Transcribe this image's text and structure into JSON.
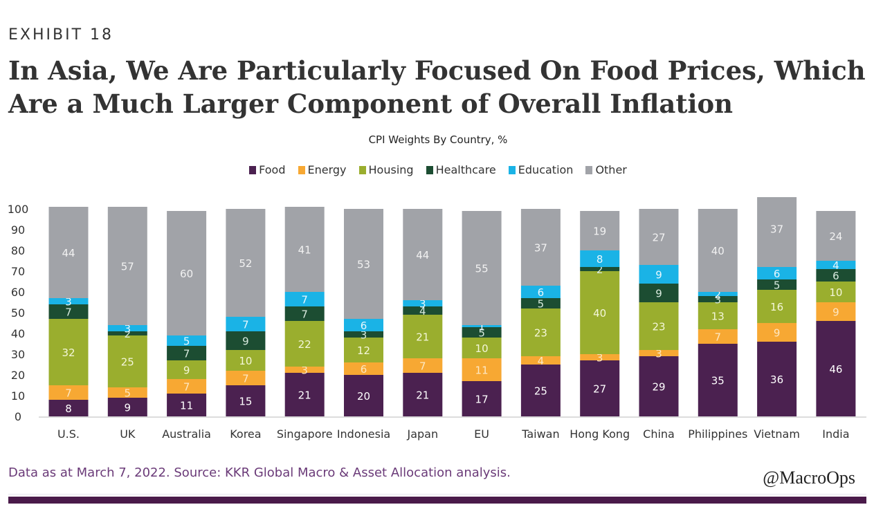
{
  "header": {
    "exhibit": "EXHIBIT 18",
    "title": "In Asia, We Are Particularly Focused On Food Prices, Which Are a Much Larger Component of Overall Inflation"
  },
  "footer": {
    "note": "Data as at March 7, 2022. Source: KKR Global Macro & Asset Allocation analysis.",
    "brand": "@MacroOps"
  },
  "chart_data": {
    "type": "bar",
    "stacked": true,
    "title": "CPI Weights By Country, %",
    "xlabel": "",
    "ylabel": "",
    "ylim": [
      0,
      100
    ],
    "yticks": [
      0,
      10,
      20,
      30,
      40,
      50,
      60,
      70,
      80,
      90,
      100
    ],
    "grid": false,
    "legend_position": "top-center",
    "categories": [
      "U.S.",
      "UK",
      "Australia",
      "Korea",
      "Singapore",
      "Indonesia",
      "Japan",
      "EU",
      "Taiwan",
      "Hong Kong",
      "China",
      "Philippines",
      "Vietnam",
      "India"
    ],
    "series": [
      {
        "name": "Food",
        "color": "#4b2150",
        "label_color": "#ffffff",
        "values": [
          8,
          9,
          11,
          15,
          21,
          20,
          21,
          17,
          25,
          27,
          29,
          35,
          36,
          46
        ]
      },
      {
        "name": "Energy",
        "color": "#f7a833",
        "label_color": "#fde7c2",
        "values": [
          7,
          5,
          7,
          7,
          3,
          6,
          7,
          11,
          4,
          3,
          3,
          7,
          9,
          9
        ]
      },
      {
        "name": "Housing",
        "color": "#9aae2e",
        "label_color": "#f4f7d9",
        "values": [
          32,
          25,
          9,
          10,
          22,
          12,
          21,
          10,
          23,
          40,
          23,
          13,
          16,
          10
        ]
      },
      {
        "name": "Healthcare",
        "color": "#1c4d32",
        "label_color": "#d9eadf",
        "values": [
          7,
          2,
          7,
          9,
          7,
          3,
          4,
          5,
          5,
          2,
          9,
          3,
          5,
          6
        ]
      },
      {
        "name": "Education",
        "color": "#1ab3e6",
        "label_color": "#e8f7fd",
        "values": [
          3,
          3,
          5,
          7,
          7,
          6,
          3,
          1,
          6,
          8,
          9,
          2,
          6,
          4
        ]
      },
      {
        "name": "Other",
        "color": "#a1a3a8",
        "label_color": "#f2f2f2",
        "values": [
          44,
          57,
          60,
          52,
          41,
          53,
          44,
          55,
          37,
          19,
          27,
          40,
          37,
          24
        ]
      }
    ]
  }
}
